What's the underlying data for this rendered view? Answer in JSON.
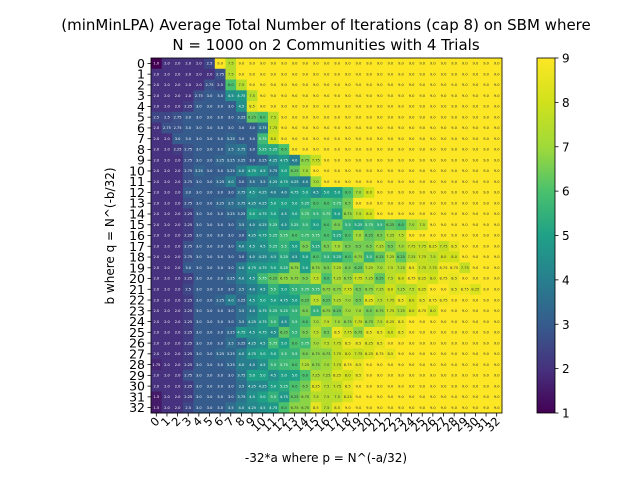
{
  "chart_data": {
    "type": "heatmap",
    "title": "(minMinLPA) Average Total Number of Iterations (cap 8) on SBM where",
    "subtitle": "N = 1000 on 2 Communities with 4 Trials",
    "xlabel": "-32*a where p = N^(-a/32)",
    "ylabel": "b where q = N^(-b/32)",
    "x_categories": [
      "0",
      "1",
      "2",
      "3",
      "4",
      "5",
      "6",
      "7",
      "8",
      "9",
      "10",
      "11",
      "12",
      "13",
      "14",
      "15",
      "16",
      "17",
      "18",
      "19",
      "20",
      "21",
      "22",
      "23",
      "24",
      "25",
      "26",
      "27",
      "28",
      "29",
      "30",
      "31",
      "32"
    ],
    "y_categories": [
      "0",
      "1",
      "2",
      "3",
      "4",
      "5",
      "6",
      "7",
      "8",
      "9",
      "10",
      "11",
      "12",
      "13",
      "14",
      "15",
      "16",
      "17",
      "18",
      "19",
      "20",
      "21",
      "22",
      "23",
      "24",
      "25",
      "26",
      "27",
      "28",
      "29",
      "30",
      "31",
      "32"
    ],
    "colorbar": {
      "min": 1,
      "max": 9,
      "ticks": [
        1,
        2,
        3,
        4,
        5,
        6,
        7,
        8,
        9
      ],
      "colormap": "viridis"
    },
    "grid": false,
    "cap_value": 9.0,
    "values": [
      [
        1.0,
        2.0,
        2.0,
        2.0,
        2.0,
        2.5,
        9.0,
        7.5,
        9.0,
        9.0,
        9.0,
        9.0,
        9.0,
        9.0,
        9.0,
        9.0,
        9.0,
        9.0,
        9.0,
        9.0,
        9.0,
        9.0,
        9.0,
        9.0,
        9.0,
        9.0,
        9.0,
        9.0,
        9.0,
        9.0,
        9.0,
        9.0,
        9.0
      ],
      [
        2.0,
        2.0,
        2.0,
        2.0,
        2.0,
        2.0,
        2.75,
        7.5,
        9.0,
        9.0,
        9.0,
        9.0,
        9.0,
        9.0,
        9.0,
        9.0,
        9.0,
        9.0,
        9.0,
        9.0,
        9.0,
        9.0,
        9.0,
        9.0,
        9.0,
        9.0,
        9.0,
        9.0,
        9.0,
        9.0,
        9.0,
        9.0,
        9.0
      ],
      [
        2.0,
        2.0,
        2.0,
        2.0,
        2.0,
        2.75,
        2.5,
        6.0,
        7.5,
        9.0,
        9.0,
        9.0,
        9.0,
        9.0,
        9.0,
        9.0,
        9.0,
        9.0,
        9.0,
        9.0,
        9.0,
        9.0,
        9.0,
        9.0,
        9.0,
        9.0,
        9.0,
        9.0,
        9.0,
        9.0,
        9.0,
        9.0,
        9.0
      ],
      [
        2.0,
        2.0,
        2.0,
        2.0,
        2.75,
        3.0,
        3.0,
        4.5,
        4.75,
        7.5,
        9.0,
        9.0,
        9.0,
        9.0,
        9.0,
        9.0,
        9.0,
        9.0,
        9.0,
        9.0,
        9.0,
        9.0,
        9.0,
        9.0,
        9.0,
        9.0,
        9.0,
        9.0,
        9.0,
        9.0,
        9.0,
        9.0,
        9.0
      ],
      [
        2.0,
        2.0,
        2.0,
        2.25,
        3.0,
        3.0,
        3.0,
        3.0,
        4.5,
        8.5,
        9.0,
        9.0,
        9.0,
        9.0,
        9.0,
        9.0,
        9.0,
        9.0,
        9.0,
        9.0,
        9.0,
        9.0,
        9.0,
        9.0,
        9.0,
        9.0,
        9.0,
        9.0,
        9.0,
        9.0,
        9.0,
        9.0,
        9.0
      ],
      [
        2.5,
        2.5,
        2.75,
        3.0,
        3.0,
        3.0,
        3.0,
        3.0,
        3.25,
        6.25,
        6.0,
        7.5,
        9.0,
        9.0,
        9.0,
        9.0,
        9.0,
        9.0,
        9.0,
        9.0,
        9.0,
        9.0,
        9.0,
        9.0,
        9.0,
        9.0,
        9.0,
        9.0,
        9.0,
        9.0,
        9.0,
        9.0,
        9.0
      ],
      [
        2.0,
        2.75,
        2.75,
        3.0,
        3.0,
        3.0,
        3.0,
        3.0,
        3.0,
        3.0,
        3.75,
        7.75,
        9.0,
        9.0,
        9.0,
        9.0,
        9.0,
        9.0,
        9.0,
        9.0,
        9.0,
        9.0,
        9.0,
        9.0,
        9.0,
        9.0,
        9.0,
        9.0,
        9.0,
        9.0,
        9.0,
        9.0,
        9.0
      ],
      [
        2.0,
        2.0,
        3.0,
        3.0,
        3.0,
        3.0,
        3.0,
        3.25,
        3.0,
        3.0,
        5.75,
        8.0,
        9.0,
        9.0,
        9.0,
        9.0,
        9.0,
        9.0,
        9.0,
        9.0,
        9.0,
        9.0,
        9.0,
        9.0,
        9.0,
        9.0,
        9.0,
        9.0,
        9.0,
        9.0,
        9.0,
        9.0,
        9.0
      ],
      [
        2.0,
        2.0,
        2.25,
        2.75,
        3.0,
        3.0,
        3.0,
        3.5,
        3.75,
        3.0,
        5.25,
        5.25,
        6.0,
        9.0,
        9.0,
        9.0,
        9.0,
        9.0,
        9.0,
        9.0,
        9.0,
        9.0,
        9.0,
        9.0,
        9.0,
        9.0,
        9.0,
        9.0,
        9.0,
        9.0,
        9.0,
        9.0,
        9.0
      ],
      [
        2.0,
        2.0,
        2.0,
        2.75,
        3.0,
        3.0,
        3.25,
        3.25,
        3.25,
        3.0,
        3.25,
        4.25,
        4.75,
        4.0,
        6.75,
        7.75,
        9.0,
        9.0,
        9.0,
        9.0,
        9.0,
        9.0,
        9.0,
        9.0,
        9.0,
        9.0,
        9.0,
        9.0,
        9.0,
        9.0,
        9.0,
        9.0,
        9.0
      ],
      [
        2.0,
        2.0,
        2.0,
        2.75,
        3.25,
        3.0,
        3.0,
        3.25,
        4.0,
        4.75,
        4.5,
        3.75,
        5.0,
        6.25,
        7.0,
        9.0,
        9.0,
        9.0,
        9.0,
        9.0,
        9.0,
        9.0,
        9.0,
        9.0,
        9.0,
        9.0,
        9.0,
        9.0,
        9.0,
        9.0,
        9.0,
        9.0,
        9.0
      ],
      [
        2.0,
        2.0,
        2.0,
        2.75,
        3.0,
        3.0,
        3.25,
        4.0,
        3.0,
        3.5,
        3.5,
        4.25,
        4.75,
        4.25,
        4.0,
        7.0,
        9.0,
        9.0,
        9.0,
        9.0,
        9.0,
        9.0,
        9.0,
        9.0,
        9.0,
        9.0,
        9.0,
        9.0,
        9.0,
        9.0,
        9.0,
        9.0,
        9.0
      ],
      [
        2.0,
        2.0,
        2.0,
        3.0,
        3.0,
        3.0,
        3.0,
        3.0,
        3.75,
        4.5,
        4.25,
        4.0,
        4.0,
        4.75,
        5.0,
        4.5,
        5.0,
        5.0,
        6.0,
        7.0,
        8.0,
        9.0,
        9.0,
        9.0,
        9.0,
        9.0,
        9.0,
        9.0,
        9.0,
        9.0,
        9.0,
        9.0,
        9.0
      ],
      [
        2.0,
        2.0,
        2.0,
        2.75,
        3.0,
        3.0,
        3.25,
        3.5,
        3.75,
        4.25,
        4.25,
        5.0,
        5.0,
        5.0,
        5.25,
        6.0,
        6.0,
        5.75,
        6.5,
        9.0,
        9.0,
        9.0,
        9.0,
        9.0,
        9.0,
        9.0,
        9.0,
        9.0,
        9.0,
        9.0,
        9.0,
        9.0,
        9.0
      ],
      [
        2.0,
        2.0,
        2.0,
        2.25,
        3.0,
        3.0,
        3.0,
        3.25,
        3.25,
        5.0,
        4.75,
        5.0,
        4.5,
        5.0,
        5.75,
        5.5,
        5.75,
        5.0,
        6.75,
        7.5,
        8.0,
        9.0,
        9.0,
        9.0,
        9.0,
        9.0,
        9.0,
        9.0,
        9.0,
        9.0,
        9.0,
        9.0,
        9.0
      ],
      [
        2.0,
        2.0,
        2.0,
        2.25,
        3.0,
        3.0,
        3.0,
        3.0,
        3.5,
        4.0,
        4.25,
        5.25,
        4.5,
        5.25,
        5.5,
        5.0,
        6.0,
        6.5,
        5.5,
        5.25,
        5.75,
        5.5,
        6.25,
        6.0,
        7.0,
        7.5,
        9.0,
        9.0,
        9.0,
        9.0,
        9.0,
        9.0,
        9.0
      ],
      [
        2.0,
        2.0,
        2.0,
        2.25,
        3.0,
        3.0,
        3.0,
        3.0,
        3.0,
        4.25,
        4.75,
        5.25,
        5.75,
        6.0,
        5.75,
        5.75,
        6.0,
        5.25,
        6.0,
        7.0,
        6.25,
        6.5,
        7.25,
        7.5,
        9.0,
        9.0,
        9.0,
        9.0,
        9.0,
        9.0,
        9.0,
        9.0,
        9.0
      ],
      [
        2.0,
        2.0,
        2.0,
        2.75,
        3.0,
        3.0,
        3.0,
        3.0,
        4.0,
        4.5,
        4.5,
        5.25,
        5.5,
        5.0,
        6.5,
        5.25,
        6.5,
        7.0,
        6.5,
        6.5,
        6.5,
        7.25,
        6.5,
        7.0,
        7.75,
        7.75,
        8.25,
        7.75,
        8.5,
        9.0,
        9.0,
        9.0,
        9.0
      ],
      [
        2.0,
        2.0,
        2.0,
        2.75,
        3.0,
        3.0,
        3.0,
        3.0,
        3.0,
        4.0,
        4.25,
        4.5,
        5.25,
        4.5,
        5.0,
        6.0,
        5.5,
        5.25,
        6.0,
        6.75,
        5.5,
        6.25,
        7.25,
        6.25,
        7.25,
        7.75,
        7.5,
        8.0,
        8.0,
        9.0,
        9.0,
        9.0,
        9.0
      ],
      [
        2.0,
        2.0,
        2.0,
        3.0,
        3.0,
        3.0,
        3.0,
        3.0,
        4.0,
        4.75,
        4.75,
        5.0,
        5.25,
        6.75,
        5.0,
        6.75,
        6.5,
        7.25,
        6.5,
        6.25,
        7.25,
        7.0,
        7.5,
        7.25,
        8.5,
        7.75,
        7.75,
        8.75,
        8.75,
        7.75,
        9.0,
        9.0,
        9.0
      ],
      [
        2.0,
        2.0,
        2.0,
        2.25,
        3.0,
        3.0,
        3.0,
        3.25,
        4.0,
        4.5,
        5.75,
        6.25,
        6.75,
        6.75,
        6.5,
        7.5,
        6.0,
        7.25,
        6.75,
        7.75,
        7.25,
        6.25,
        7.5,
        8.0,
        8.75,
        8.25,
        8.0,
        8.75,
        8.5,
        9.0,
        9.0,
        9.0,
        9.0
      ],
      [
        2.0,
        2.0,
        2.0,
        2.5,
        3.0,
        3.0,
        3.0,
        3.0,
        3.5,
        4.0,
        4.5,
        5.5,
        5.0,
        5.5,
        5.75,
        5.75,
        6.75,
        6.75,
        7.75,
        6.5,
        6.75,
        7.25,
        8.0,
        7.25,
        7.5,
        8.25,
        9.0,
        9.0,
        8.5,
        8.75,
        8.25,
        9.0,
        9.0
      ],
      [
        2.0,
        2.0,
        2.0,
        2.25,
        3.0,
        3.0,
        3.25,
        4.0,
        3.25,
        4.5,
        5.0,
        5.0,
        4.75,
        5.0,
        6.25,
        7.5,
        6.25,
        7.25,
        7.0,
        6.5,
        8.25,
        7.5,
        7.75,
        8.5,
        8.0,
        8.5,
        8.75,
        8.75,
        9.0,
        9.0,
        9.0,
        9.0,
        9.0
      ],
      [
        2.0,
        2.0,
        2.0,
        2.25,
        3.0,
        3.0,
        3.0,
        3.0,
        3.5,
        4.0,
        4.75,
        5.25,
        5.25,
        5.5,
        6.5,
        5.5,
        6.75,
        6.25,
        7.0,
        7.0,
        6.5,
        6.75,
        7.75,
        7.25,
        8.0,
        8.75,
        8.0,
        9.0,
        9.0,
        9.0,
        9.0,
        9.0,
        9.0
      ],
      [
        2.0,
        2.0,
        2.0,
        2.25,
        3.0,
        3.0,
        3.0,
        3.0,
        3.5,
        4.25,
        4.75,
        5.5,
        4.5,
        5.5,
        6.0,
        7.0,
        7.5,
        7.0,
        6.75,
        7.75,
        6.75,
        7.5,
        8.25,
        8.5,
        9.0,
        9.0,
        9.0,
        9.0,
        9.0,
        9.0,
        9.0,
        9.0,
        9.0
      ],
      [
        2.0,
        2.0,
        2.0,
        2.25,
        3.0,
        3.0,
        3.0,
        3.25,
        4.75,
        4.5,
        4.75,
        4.5,
        6.25,
        5.5,
        6.5,
        7.5,
        6.5,
        8.5,
        7.75,
        6.75,
        8.5,
        8.5,
        8.0,
        8.5,
        9.0,
        9.0,
        9.0,
        9.0,
        9.0,
        9.0,
        9.0,
        9.0,
        9.0
      ],
      [
        2.0,
        2.0,
        2.0,
        2.25,
        3.0,
        3.0,
        3.0,
        3.5,
        3.25,
        4.25,
        4.5,
        5.75,
        5.0,
        6.0,
        5.75,
        7.0,
        7.5,
        7.75,
        8.5,
        8.5,
        8.25,
        8.5,
        9.0,
        9.0,
        9.0,
        9.0,
        9.0,
        9.0,
        9.0,
        9.0,
        9.0,
        9.0,
        9.0
      ],
      [
        2.0,
        2.0,
        2.0,
        2.25,
        3.0,
        3.0,
        3.25,
        3.25,
        4.0,
        4.75,
        5.0,
        5.0,
        5.5,
        5.5,
        6.5,
        6.75,
        6.75,
        7.75,
        8.0,
        7.75,
        8.25,
        8.75,
        8.5,
        9.0,
        9.0,
        9.0,
        9.0,
        9.0,
        9.0,
        9.0,
        9.0,
        9.0,
        9.0
      ],
      [
        1.75,
        2.0,
        2.0,
        2.25,
        3.0,
        3.0,
        3.0,
        3.25,
        4.0,
        4.0,
        4.5,
        5.5,
        5.75,
        6.0,
        7.25,
        6.75,
        7.0,
        7.75,
        8.75,
        8.5,
        9.0,
        9.0,
        9.0,
        9.0,
        9.0,
        9.0,
        9.0,
        9.0,
        9.0,
        9.0,
        9.0,
        9.0,
        9.0
      ],
      [
        2.0,
        2.0,
        2.0,
        2.75,
        3.0,
        3.0,
        3.0,
        3.0,
        3.75,
        5.0,
        5.0,
        4.5,
        5.0,
        5.0,
        6.0,
        7.25,
        7.25,
        8.25,
        8.0,
        8.5,
        9.0,
        9.0,
        9.0,
        9.0,
        9.0,
        9.0,
        9.0,
        9.0,
        9.0,
        9.0,
        9.0,
        9.0,
        9.0
      ],
      [
        2.0,
        2.0,
        2.0,
        2.25,
        3.0,
        3.0,
        3.0,
        3.0,
        3.5,
        4.25,
        4.25,
        5.0,
        5.25,
        6.0,
        6.5,
        8.25,
        7.5,
        7.75,
        8.5,
        9.0,
        9.0,
        9.0,
        9.0,
        9.0,
        9.0,
        9.0,
        9.0,
        9.0,
        9.0,
        9.0,
        9.0,
        9.0,
        9.0
      ],
      [
        1.5,
        2.0,
        2.0,
        2.25,
        3.0,
        3.0,
        3.0,
        3.0,
        3.75,
        4.5,
        5.0,
        5.5,
        4.75,
        6.25,
        6.75,
        7.5,
        7.5,
        7.5,
        8.25,
        9.0,
        9.0,
        9.0,
        9.0,
        9.0,
        9.0,
        9.0,
        9.0,
        9.0,
        9.0,
        9.0,
        9.0,
        9.0,
        9.0
      ],
      [
        1.5,
        2.0,
        2.0,
        2.5,
        3.0,
        3.0,
        3.0,
        3.5,
        4.0,
        4.25,
        4.5,
        4.75,
        6.0,
        6.75,
        6.75,
        8.5,
        7.5,
        8.5,
        9.0,
        9.0,
        9.0,
        9.0,
        9.0,
        9.0,
        9.0,
        9.0,
        9.0,
        9.0,
        9.0,
        9.0,
        9.0,
        9.0,
        9.0
      ]
    ]
  }
}
